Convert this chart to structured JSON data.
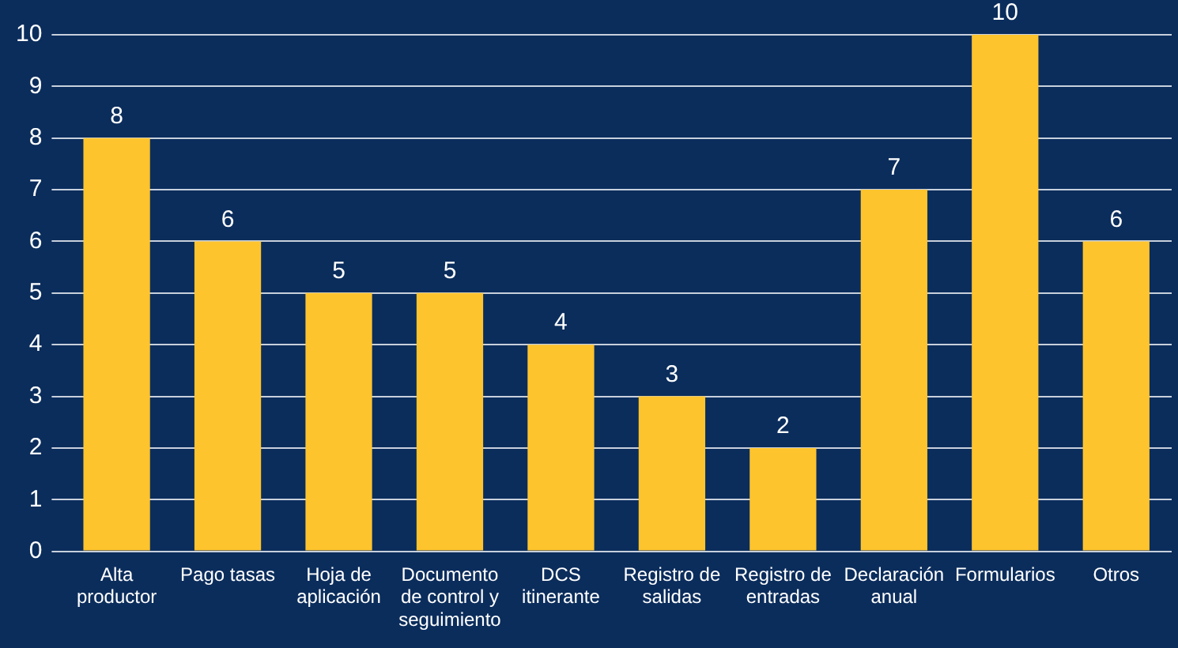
{
  "chart_data": {
    "type": "bar",
    "categories": [
      "Alta productor",
      "Pago tasas",
      "Hoja de aplicación",
      "Documento de control y seguimiento",
      "DCS itinerante",
      "Registro de salidas",
      "Registro de entradas",
      "Declaración anual",
      "Formularios",
      "Otros"
    ],
    "values": [
      8,
      6,
      5,
      5,
      4,
      3,
      2,
      7,
      10,
      6
    ],
    "color": "#fec42d",
    "ylim": [
      0,
      10
    ],
    "yticks": [
      0,
      1,
      2,
      3,
      4,
      5,
      6,
      7,
      8,
      9,
      10
    ],
    "grid": "y",
    "data_labels": true,
    "legend": false
  }
}
